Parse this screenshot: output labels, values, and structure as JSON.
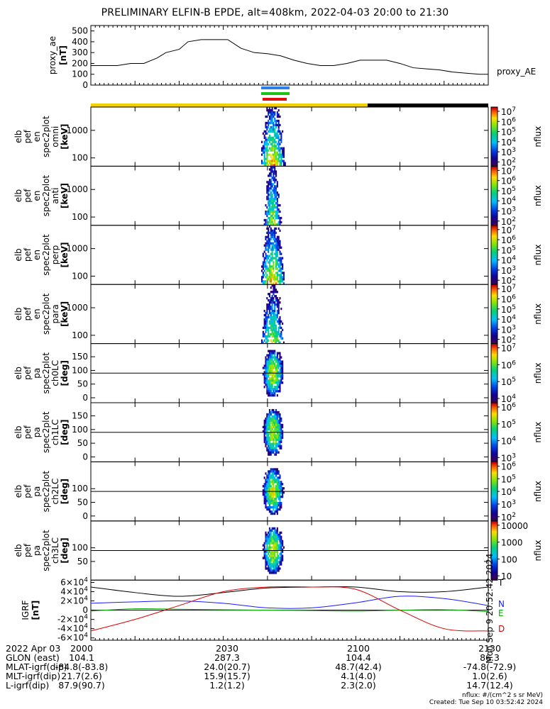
{
  "title": "PRELIMINARY ELFIN-B EPDE, alt=408km, 2022-04-03 20:00 to 21:30",
  "ae_panel": {
    "ylabel": "proxy_ae\n[nT]",
    "series_name": "proxy_AE",
    "ylim": [
      0,
      550
    ],
    "yticks": [
      "500",
      "400",
      "300",
      "200",
      "100",
      "0"
    ]
  },
  "spec_panels": [
    {
      "ylabel": [
        "elb",
        "pef",
        "en",
        "spec2plot",
        "omni",
        "[keV]"
      ],
      "yticks": [
        "1000",
        "100"
      ],
      "cbar_ticks": [
        "10^7",
        "10^6",
        "10^5",
        "10^4",
        "10^3",
        "10^2"
      ],
      "cbar_label": "nflux",
      "kind": "energy_a"
    },
    {
      "ylabel": [
        "elb",
        "pef",
        "en",
        "spec2plot",
        "anti",
        "[keV]"
      ],
      "yticks": [
        "1000",
        "100"
      ],
      "cbar_ticks": [
        "10^7",
        "10^6",
        "10^5",
        "10^4",
        "10^3",
        "10^2"
      ],
      "cbar_label": "nflux",
      "kind": "energy_b"
    },
    {
      "ylabel": [
        "elb",
        "pef",
        "en",
        "spec2plot",
        "perp",
        "[keV]"
      ],
      "yticks": [
        "1000",
        "100"
      ],
      "cbar_ticks": [
        "10^7",
        "10^6",
        "10^5",
        "10^4",
        "10^3",
        "10^2"
      ],
      "cbar_label": "nflux",
      "kind": "energy_a"
    },
    {
      "ylabel": [
        "elb",
        "pef",
        "en",
        "spec2plot",
        "para",
        "[keV]"
      ],
      "yticks": [
        "1000",
        "100"
      ],
      "cbar_ticks": [
        "10^7",
        "10^6",
        "10^5",
        "10^4",
        "10^3",
        "10^2"
      ],
      "cbar_label": "nflux",
      "kind": "energy_c"
    },
    {
      "ylabel": [
        "elb",
        "pef",
        "pa",
        "spec2plot",
        "ch0LC",
        "[deg]"
      ],
      "yticks": [
        "150",
        "100",
        "50",
        "0"
      ],
      "cbar_ticks": [
        "10^7",
        "10^6",
        "10^5",
        "10^4"
      ],
      "cbar_label": "nflux",
      "kind": "pa"
    },
    {
      "ylabel": [
        "elb",
        "pef",
        "pa",
        "spec2plot",
        "ch1LC",
        "[deg]"
      ],
      "yticks": [
        "150",
        "100",
        "50",
        "0"
      ],
      "cbar_ticks": [
        "10^6",
        "10^5",
        "10^4",
        "10^3"
      ],
      "cbar_label": "nflux",
      "kind": "pa"
    },
    {
      "ylabel": [
        "elb",
        "pef",
        "pa",
        "spec2plot",
        "ch2LC",
        "[deg]"
      ],
      "yticks": [
        "100",
        "50",
        "0"
      ],
      "cbar_ticks": [
        "10^6",
        "10^5",
        "10^4",
        "10^3",
        "10^2"
      ],
      "cbar_label": "nflux",
      "kind": "pa"
    },
    {
      "ylabel": [
        "elb",
        "pef",
        "pa",
        "spec2plot",
        "ch3LC",
        "[deg]"
      ],
      "yticks": [
        "100",
        "50"
      ],
      "cbar_ticks": [
        "10000",
        "1000",
        "100",
        "10"
      ],
      "cbar_label": "nflux",
      "kind": "pa"
    }
  ],
  "igrf_panel": {
    "ylabel": "IGRF\n[nT]",
    "yticks": [
      "6×10^4",
      "4×10^4",
      "2×10^4",
      "0",
      "-2×10^4",
      "-4×10^4",
      "-6×10^4"
    ],
    "legend": [
      {
        "label": "T",
        "color": "#000000"
      },
      {
        "label": "N",
        "color": "#1a1aff"
      },
      {
        "label": "E",
        "color": "#00b000"
      },
      {
        "label": "D",
        "color": "#e00000"
      }
    ],
    "side_text": "Mon Sep 9 20:52:42 2024"
  },
  "colors": {
    "day_bar": "#f5d000",
    "night_bar": "#000000",
    "blue": "#2a7fe8",
    "green": "#19c419",
    "red": "#e01010"
  },
  "footer": {
    "rows": [
      {
        "label": "2022 Apr 03",
        "values": [
          "2000",
          "2030",
          "2100",
          "2130"
        ]
      },
      {
        "label": "GLON (east)",
        "values": [
          "104.1",
          "287.3",
          "104.4",
          "86.3"
        ]
      },
      {
        "label": "MLAT-igrf(dip)",
        "values": [
          "-84.8(-83.8)",
          "24.0(20.7)",
          "48.7(42.4)",
          "-74.8(-72.9)"
        ]
      },
      {
        "label": "MLT-igrf(dip)",
        "values": [
          "21.7(2.6)",
          "15.9(15.7)",
          "4.1(4.0)",
          "1.0(2.6)"
        ]
      },
      {
        "label": "L-igrf(dip)",
        "values": [
          "87.9(90.7)",
          "1.2(1.2)",
          "2.3(2.0)",
          "14.7(12.4)"
        ]
      }
    ],
    "units": "nflux: #/(cm^2 s sr MeV)",
    "created": "Created: Tue Sep 10 03:52:42 2024"
  },
  "chart_data": [
    {
      "type": "line",
      "title": "",
      "ylabel": "proxy_ae [nT]",
      "series": [
        {
          "name": "proxy_AE",
          "x": [
            0,
            3,
            6,
            9,
            12,
            15,
            17,
            20,
            22,
            25,
            28,
            31,
            34,
            37,
            40,
            43,
            46,
            49,
            52,
            55,
            58,
            61,
            64,
            67,
            70,
            73,
            76,
            79,
            82,
            85,
            88,
            90
          ],
          "values": [
            180,
            180,
            180,
            200,
            200,
            250,
            300,
            330,
            400,
            420,
            420,
            420,
            340,
            300,
            290,
            270,
            230,
            200,
            180,
            180,
            200,
            230,
            230,
            230,
            200,
            160,
            150,
            140,
            120,
            110,
            100,
            100
          ]
        }
      ],
      "x_unit": "minutes since 20:00",
      "ylim": [
        0,
        550
      ]
    },
    {
      "type": "line",
      "title": "",
      "ylabel": "IGRF [nT]",
      "x_unit": "minutes since 20:00",
      "ylim": [
        -65000,
        65000
      ],
      "series": [
        {
          "name": "T",
          "x": [
            0,
            10,
            20,
            30,
            40,
            50,
            60,
            70,
            80,
            90
          ],
          "values": [
            50000,
            38000,
            30000,
            38000,
            48000,
            50000,
            50000,
            40000,
            40000,
            50000
          ]
        },
        {
          "name": "N",
          "x": [
            0,
            10,
            20,
            30,
            40,
            50,
            60,
            70,
            80,
            90
          ],
          "values": [
            15000,
            18000,
            20000,
            15000,
            5000,
            5000,
            16000,
            30000,
            25000,
            10000
          ]
        },
        {
          "name": "E",
          "x": [
            0,
            10,
            20,
            30,
            40,
            50,
            60,
            70,
            80,
            90
          ],
          "values": [
            -2000,
            3000,
            2000,
            1000,
            0,
            -1000,
            -2000,
            0,
            1000,
            -3000
          ]
        },
        {
          "name": "D",
          "x": [
            0,
            10,
            20,
            30,
            40,
            50,
            60,
            70,
            80,
            90
          ],
          "values": [
            -45000,
            -20000,
            10000,
            40000,
            50000,
            50000,
            45000,
            0,
            -40000,
            -45000
          ]
        }
      ]
    }
  ]
}
